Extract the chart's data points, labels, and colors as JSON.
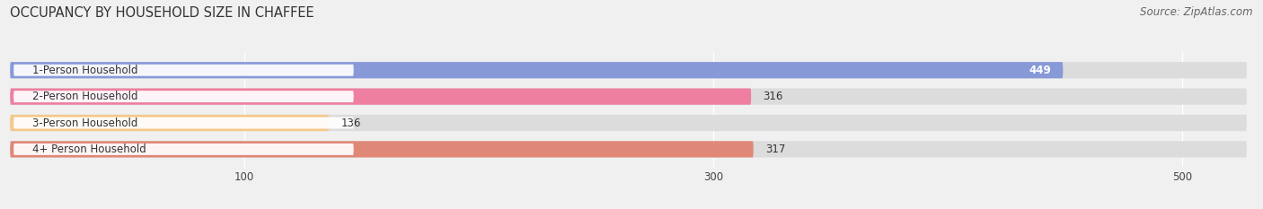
{
  "title": "OCCUPANCY BY HOUSEHOLD SIZE IN CHAFFEE",
  "source": "Source: ZipAtlas.com",
  "categories": [
    "1-Person Household",
    "2-Person Household",
    "3-Person Household",
    "4+ Person Household"
  ],
  "values": [
    449,
    316,
    136,
    317
  ],
  "bar_colors": [
    "#8899d8",
    "#ee7fa0",
    "#f5c98a",
    "#e08878"
  ],
  "value_inside": [
    true,
    false,
    false,
    false
  ],
  "xlim_max": 530,
  "xticks": [
    100,
    300,
    500
  ],
  "background_color": "#f0f0f0",
  "bar_bg_color": "#dcdcdc",
  "title_fontsize": 10.5,
  "source_fontsize": 8.5,
  "label_fontsize": 8.5,
  "value_fontsize": 8.5
}
